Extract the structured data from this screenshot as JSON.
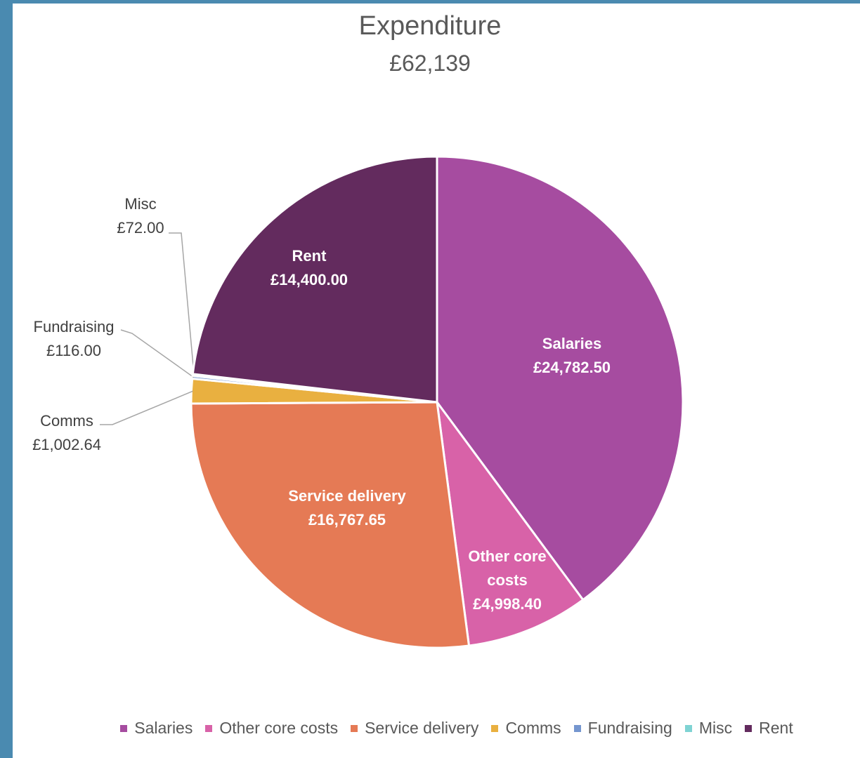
{
  "chart_data": {
    "type": "pie",
    "title": "Expenditure",
    "subtitle": "£62,139",
    "categories": [
      "Salaries",
      "Other core costs",
      "Service delivery",
      "Comms",
      "Fundraising",
      "Misc",
      "Rent"
    ],
    "values": [
      24782.5,
      4998.4,
      16767.65,
      1002.64,
      116,
      72,
      14400
    ],
    "value_labels": [
      "£24,782.50",
      "£4,998.40",
      "£16,767.65",
      "£1,002.64",
      "£116.00",
      "£72.00",
      "£14,400.00"
    ],
    "colors": [
      "#a64ca0",
      "#d862a8",
      "#e57a55",
      "#e9b040",
      "#7596cf",
      "#7fd3d3",
      "#632b5e"
    ],
    "legend": "bottom"
  }
}
